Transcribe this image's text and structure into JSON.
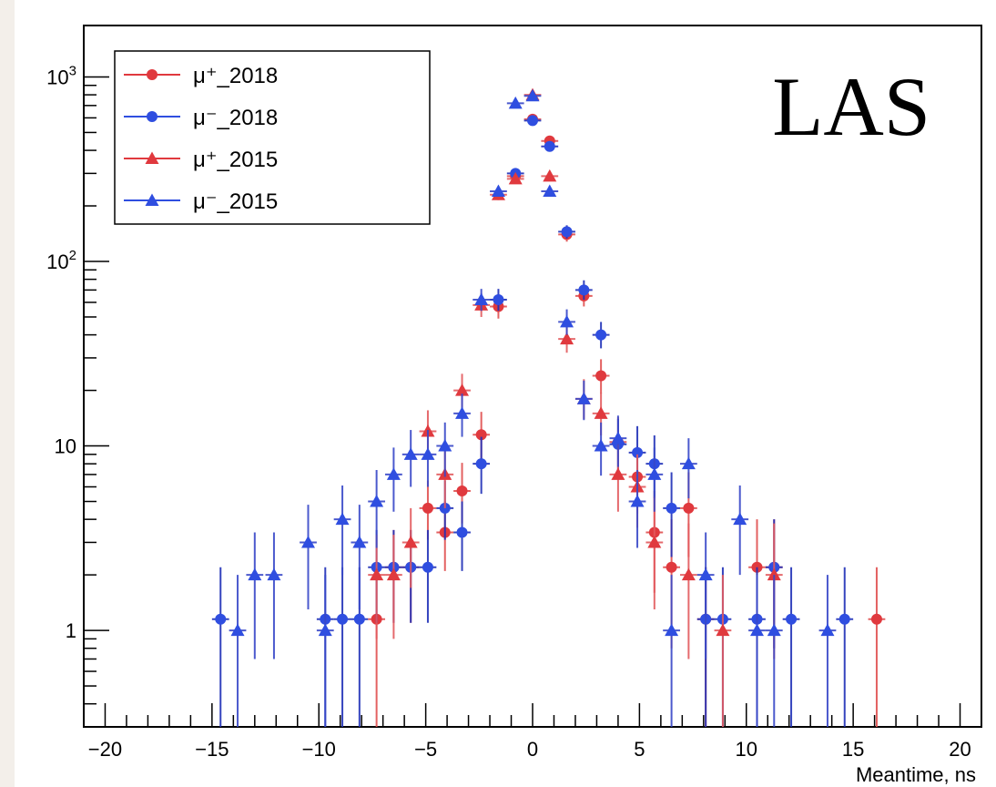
{
  "chart_data": {
    "type": "scatter",
    "title": "",
    "xlabel": "Meantime, ns",
    "ylabel": "",
    "xlim": [
      -21,
      21
    ],
    "ylim": [
      0.3,
      1900
    ],
    "yscale": "log",
    "grid": false,
    "legend_position": "top-left",
    "tag": "LAS",
    "x_ticks": [
      {
        "value": -20,
        "label": "−20"
      },
      {
        "value": -15,
        "label": "−15"
      },
      {
        "value": -10,
        "label": "−10"
      },
      {
        "value": -5,
        "label": "−5"
      },
      {
        "value": 0,
        "label": "0"
      },
      {
        "value": 5,
        "label": "5"
      },
      {
        "value": 10,
        "label": "10"
      },
      {
        "value": 15,
        "label": "15"
      },
      {
        "value": 20,
        "label": "20"
      }
    ],
    "y_ticks": [
      {
        "value": 1,
        "label": "1",
        "sup": ""
      },
      {
        "value": 10,
        "label": "10",
        "sup": ""
      },
      {
        "value": 100,
        "label": "10",
        "sup": "2"
      },
      {
        "value": 1000,
        "label": "10",
        "sup": "3"
      }
    ],
    "series": [
      {
        "name": "μ⁺_2018",
        "marker": "circle",
        "color": "#e0393e",
        "points": [
          {
            "x": -7.3,
            "y": 1.15,
            "err": [
              0.95,
              1.05
            ]
          },
          {
            "x": -6.5,
            "y": 2.2,
            "err": [
              1.1,
              1.3
            ]
          },
          {
            "x": -5.7,
            "y": 2.2,
            "err": [
              1.1,
              1.3
            ]
          },
          {
            "x": -4.9,
            "y": 4.6,
            "err": [
              1.5,
              1.9
            ]
          },
          {
            "x": -4.1,
            "y": 3.4,
            "err": [
              1.3,
              1.6
            ]
          },
          {
            "x": -3.3,
            "y": 5.7,
            "err": [
              1.9,
              2.4
            ]
          },
          {
            "x": -2.4,
            "y": 11.5,
            "err": [
              3,
              3.8
            ]
          },
          {
            "x": -1.6,
            "y": 57,
            "err": [
              8,
              9
            ]
          },
          {
            "x": -0.8,
            "y": 290,
            "err": [
              17,
              18
            ]
          },
          {
            "x": 0.0,
            "y": 590,
            "err": [
              24,
              25
            ]
          },
          {
            "x": 0.8,
            "y": 450,
            "err": [
              21,
              22
            ]
          },
          {
            "x": 1.6,
            "y": 140,
            "err": [
              12,
              12
            ]
          },
          {
            "x": 2.4,
            "y": 65,
            "err": [
              8,
              9
            ]
          },
          {
            "x": 3.2,
            "y": 24,
            "err": [
              4.8,
              5.5
            ]
          },
          {
            "x": 4.0,
            "y": 10.5,
            "err": [
              3.1,
              3.8
            ]
          },
          {
            "x": 4.9,
            "y": 6.8,
            "err": [
              2.5,
              3.1
            ]
          },
          {
            "x": 5.7,
            "y": 3.4,
            "err": [
              1.8,
              2.3
            ]
          },
          {
            "x": 6.5,
            "y": 2.2,
            "err": [
              1.4,
              1.8
            ]
          },
          {
            "x": 7.3,
            "y": 4.6,
            "err": [
              2.1,
              2.6
            ]
          },
          {
            "x": 8.1,
            "y": 1.15,
            "err": [
              0.95,
              1.05
            ]
          },
          {
            "x": 10.5,
            "y": 2.2,
            "err": [
              1.4,
              1.8
            ]
          },
          {
            "x": 11.3,
            "y": 2.2,
            "err": [
              1.4,
              1.8
            ]
          },
          {
            "x": 16.1,
            "y": 1.15,
            "err": [
              0.95,
              1.05
            ]
          }
        ]
      },
      {
        "name": "μ⁻_2018",
        "marker": "circle",
        "color": "#2f4ee0",
        "points": [
          {
            "x": -14.6,
            "y": 1.15,
            "err": [
              0.95,
              1.05
            ]
          },
          {
            "x": -9.7,
            "y": 1.15,
            "err": [
              0.95,
              1.05
            ]
          },
          {
            "x": -8.9,
            "y": 1.15,
            "err": [
              0.95,
              1.05
            ]
          },
          {
            "x": -8.1,
            "y": 1.15,
            "err": [
              0.95,
              1.05
            ]
          },
          {
            "x": -7.3,
            "y": 2.2,
            "err": [
              1.1,
              1.3
            ]
          },
          {
            "x": -6.5,
            "y": 2.2,
            "err": [
              1.1,
              1.3
            ]
          },
          {
            "x": -5.7,
            "y": 2.2,
            "err": [
              1.1,
              1.3
            ]
          },
          {
            "x": -4.9,
            "y": 2.2,
            "err": [
              1.1,
              1.3
            ]
          },
          {
            "x": -4.1,
            "y": 4.6,
            "err": [
              1.5,
              1.9
            ]
          },
          {
            "x": -3.3,
            "y": 3.4,
            "err": [
              1.3,
              1.6
            ]
          },
          {
            "x": -2.4,
            "y": 8.0,
            "err": [
              2.5,
              3.2
            ]
          },
          {
            "x": -1.6,
            "y": 62,
            "err": [
              8,
              9
            ]
          },
          {
            "x": -0.8,
            "y": 300,
            "err": [
              17,
              18
            ]
          },
          {
            "x": 0.0,
            "y": 580,
            "err": [
              24,
              25
            ]
          },
          {
            "x": 0.8,
            "y": 420,
            "err": [
              20,
              21
            ]
          },
          {
            "x": 1.6,
            "y": 145,
            "err": [
              12,
              12
            ]
          },
          {
            "x": 2.4,
            "y": 70,
            "err": [
              8,
              9
            ]
          },
          {
            "x": 3.2,
            "y": 40,
            "err": [
              6.2,
              7
            ]
          },
          {
            "x": 4.0,
            "y": 10.2,
            "err": [
              3.1,
              3.8
            ]
          },
          {
            "x": 4.9,
            "y": 9.2,
            "err": [
              2.9,
              3.6
            ]
          },
          {
            "x": 5.7,
            "y": 8.0,
            "err": [
              2.8,
              3.4
            ]
          },
          {
            "x": 6.5,
            "y": 4.6,
            "err": [
              2.1,
              2.6
            ]
          },
          {
            "x": 8.1,
            "y": 1.15,
            "err": [
              0.95,
              1.05
            ]
          },
          {
            "x": 8.9,
            "y": 1.15,
            "err": [
              0.95,
              1.05
            ]
          },
          {
            "x": 10.5,
            "y": 1.15,
            "err": [
              0.95,
              1.05
            ]
          },
          {
            "x": 11.3,
            "y": 2.2,
            "err": [
              1.4,
              1.8
            ]
          },
          {
            "x": 12.1,
            "y": 1.15,
            "err": [
              0.95,
              1.05
            ]
          },
          {
            "x": 14.6,
            "y": 1.15,
            "err": [
              0.95,
              1.05
            ]
          }
        ]
      },
      {
        "name": "μ⁺_2015",
        "marker": "triangle",
        "color": "#e0393e",
        "points": [
          {
            "x": -7.3,
            "y": 2.0,
            "err": [
              1.1,
              1.3
            ]
          },
          {
            "x": -6.5,
            "y": 2.0,
            "err": [
              1.1,
              1.3
            ]
          },
          {
            "x": -5.7,
            "y": 3.0,
            "err": [
              1.3,
              1.6
            ]
          },
          {
            "x": -4.9,
            "y": 12,
            "err": [
              3,
              3.6
            ]
          },
          {
            "x": -4.1,
            "y": 7.0,
            "err": [
              2.4,
              3
            ]
          },
          {
            "x": -3.3,
            "y": 20,
            "err": [
              4,
              4.6
            ]
          },
          {
            "x": -2.4,
            "y": 58,
            "err": [
              8,
              9
            ]
          },
          {
            "x": -1.6,
            "y": 230,
            "err": [
              15,
              16
            ]
          },
          {
            "x": -0.8,
            "y": 280,
            "err": [
              17,
              18
            ]
          },
          {
            "x": 0.0,
            "y": 800,
            "err": [
              28,
              29
            ]
          },
          {
            "x": 0.8,
            "y": 290,
            "err": [
              17,
              18
            ]
          },
          {
            "x": 1.6,
            "y": 38,
            "err": [
              6,
              7
            ]
          },
          {
            "x": 2.4,
            "y": 18,
            "err": [
              4,
              5
            ]
          },
          {
            "x": 3.2,
            "y": 15,
            "err": [
              3.6,
              4.4
            ]
          },
          {
            "x": 4.0,
            "y": 7.0,
            "err": [
              2.6,
              3.2
            ]
          },
          {
            "x": 4.9,
            "y": 6.0,
            "err": [
              2.4,
              3
            ]
          },
          {
            "x": 5.7,
            "y": 3.0,
            "err": [
              1.7,
              2.3
            ]
          },
          {
            "x": 7.3,
            "y": 2.0,
            "err": [
              1.3,
              1.8
            ]
          },
          {
            "x": 8.9,
            "y": 1.0,
            "err": [
              0.8,
              1.0
            ]
          },
          {
            "x": 11.3,
            "y": 2.0,
            "err": [
              1.3,
              1.8
            ]
          }
        ]
      },
      {
        "name": "μ⁻_2015",
        "marker": "triangle",
        "color": "#2f4ee0",
        "points": [
          {
            "x": -13.8,
            "y": 1.0,
            "err": [
              0.8,
              1.0
            ]
          },
          {
            "x": -13.0,
            "y": 2.0,
            "err": [
              1.3,
              1.4
            ]
          },
          {
            "x": -12.1,
            "y": 2.0,
            "err": [
              1.3,
              1.4
            ]
          },
          {
            "x": -10.5,
            "y": 3.0,
            "err": [
              1.7,
              1.8
            ]
          },
          {
            "x": -9.7,
            "y": 1.0,
            "err": [
              0.8,
              1.0
            ]
          },
          {
            "x": -8.9,
            "y": 4.0,
            "err": [
              2.0,
              2.1
            ]
          },
          {
            "x": -8.1,
            "y": 3.0,
            "err": [
              1.7,
              1.8
            ]
          },
          {
            "x": -7.3,
            "y": 5.0,
            "err": [
              2.2,
              2.4
            ]
          },
          {
            "x": -6.5,
            "y": 7.0,
            "err": [
              2.6,
              2.8
            ]
          },
          {
            "x": -5.7,
            "y": 9.0,
            "err": [
              3.0,
              3.2
            ]
          },
          {
            "x": -4.9,
            "y": 9.0,
            "err": [
              3.0,
              3.2
            ]
          },
          {
            "x": -4.1,
            "y": 10,
            "err": [
              3.2,
              3.4
            ]
          },
          {
            "x": -3.3,
            "y": 15,
            "err": [
              3.8,
              4.2
            ]
          },
          {
            "x": -2.4,
            "y": 62,
            "err": [
              8,
              9
            ]
          },
          {
            "x": -1.6,
            "y": 240,
            "err": [
              15,
              16
            ]
          },
          {
            "x": -0.8,
            "y": 720,
            "err": [
              27,
              28
            ]
          },
          {
            "x": 0.0,
            "y": 790,
            "err": [
              28,
              29
            ]
          },
          {
            "x": 0.8,
            "y": 240,
            "err": [
              15,
              16
            ]
          },
          {
            "x": 1.6,
            "y": 47,
            "err": [
              7,
              8
            ]
          },
          {
            "x": 2.4,
            "y": 18,
            "err": [
              4.2,
              4.6
            ]
          },
          {
            "x": 3.2,
            "y": 10,
            "err": [
              3.1,
              3.4
            ]
          },
          {
            "x": 4.0,
            "y": 11,
            "err": [
              3.3,
              3.6
            ]
          },
          {
            "x": 4.9,
            "y": 5.0,
            "err": [
              2.2,
              2.4
            ]
          },
          {
            "x": 5.7,
            "y": 7.0,
            "err": [
              2.6,
              2.8
            ]
          },
          {
            "x": 6.5,
            "y": 1.0,
            "err": [
              0.8,
              1.0
            ]
          },
          {
            "x": 7.3,
            "y": 8.0,
            "err": [
              2.8,
              3.0
            ]
          },
          {
            "x": 8.1,
            "y": 2.0,
            "err": [
              1.3,
              1.4
            ]
          },
          {
            "x": 9.7,
            "y": 4.0,
            "err": [
              2.0,
              2.1
            ]
          },
          {
            "x": 10.5,
            "y": 1.0,
            "err": [
              0.8,
              1.0
            ]
          },
          {
            "x": 11.3,
            "y": 1.0,
            "err": [
              0.8,
              1.0
            ]
          },
          {
            "x": 13.8,
            "y": 1.0,
            "err": [
              0.8,
              1.0
            ]
          }
        ]
      }
    ]
  }
}
